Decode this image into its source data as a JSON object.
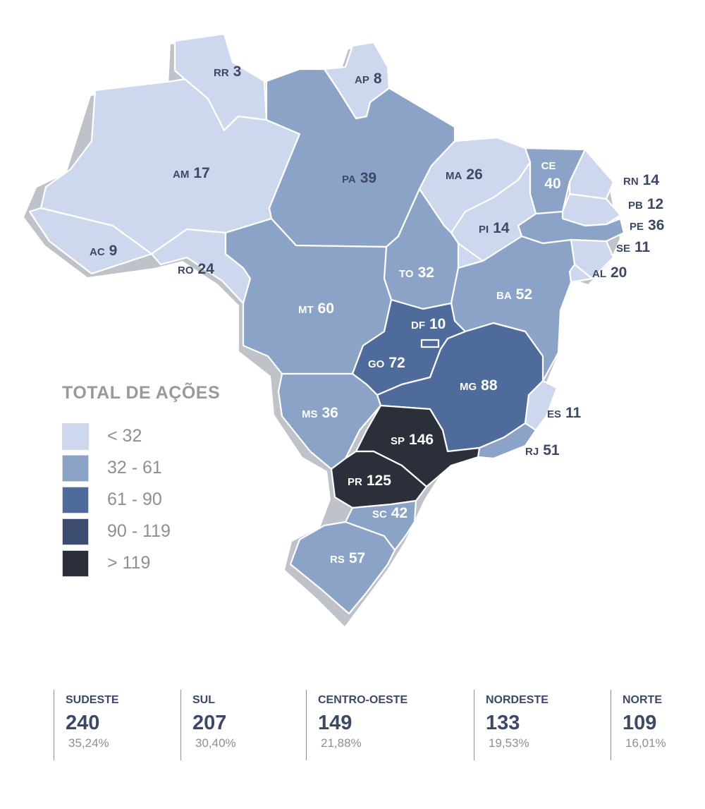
{
  "legend": {
    "title": "TOTAL DE AÇÕES",
    "items": [
      {
        "label": "< 32",
        "color": "#cdd8ee"
      },
      {
        "label": "32 - 61",
        "color": "#8ba3c7"
      },
      {
        "label": "61 - 90",
        "color": "#4e6b9b"
      },
      {
        "label": "90 - 119",
        "color": "#3d4d70"
      },
      {
        "label": "> 119",
        "color": "#2b2f3a"
      }
    ]
  },
  "states": [
    {
      "abbr": "RR",
      "value": "3"
    },
    {
      "abbr": "AP",
      "value": "8"
    },
    {
      "abbr": "AM",
      "value": "17"
    },
    {
      "abbr": "PA",
      "value": "39"
    },
    {
      "abbr": "MA",
      "value": "26"
    },
    {
      "abbr": "CE",
      "value": "40"
    },
    {
      "abbr": "RN",
      "value": "14"
    },
    {
      "abbr": "PB",
      "value": "12"
    },
    {
      "abbr": "PE",
      "value": "36"
    },
    {
      "abbr": "PI",
      "value": "14"
    },
    {
      "abbr": "SE",
      "value": "11"
    },
    {
      "abbr": "AL",
      "value": "20"
    },
    {
      "abbr": "AC",
      "value": "9"
    },
    {
      "abbr": "RO",
      "value": "24"
    },
    {
      "abbr": "TO",
      "value": "32"
    },
    {
      "abbr": "BA",
      "value": "52"
    },
    {
      "abbr": "MT",
      "value": "60"
    },
    {
      "abbr": "DF",
      "value": "10"
    },
    {
      "abbr": "GO",
      "value": "72"
    },
    {
      "abbr": "MG",
      "value": "88"
    },
    {
      "abbr": "MS",
      "value": "36"
    },
    {
      "abbr": "ES",
      "value": "11"
    },
    {
      "abbr": "SP",
      "value": "146"
    },
    {
      "abbr": "RJ",
      "value": "51"
    },
    {
      "abbr": "PR",
      "value": "125"
    },
    {
      "abbr": "SC",
      "value": "42"
    },
    {
      "abbr": "RS",
      "value": "57"
    }
  ],
  "regions": [
    {
      "name": "SUDESTE",
      "total": "240",
      "pct": "35,24%"
    },
    {
      "name": "SUL",
      "total": "207",
      "pct": "30,40%"
    },
    {
      "name": "CENTRO-OESTE",
      "total": "149",
      "pct": "21,88%"
    },
    {
      "name": "NORDESTE",
      "total": "133",
      "pct": "19,53%"
    },
    {
      "name": "NORTE",
      "total": "109",
      "pct": "16,01%"
    }
  ]
}
